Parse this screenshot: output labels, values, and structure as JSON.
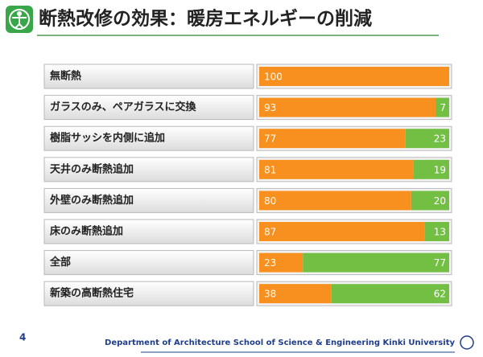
{
  "chart_data": {
    "type": "stacked-bar-horizontal",
    "title": "断熱改修の効果：暖房エネルギーの削減",
    "categories": [
      "無断熱",
      "ガラスのみ、ペアガラスに交換",
      "樹脂サッシを内側に追加",
      "天井のみ断熱追加",
      "外壁のみ断熱追加",
      "床のみ断熱追加",
      "全部",
      "新築の高断熱住宅"
    ],
    "series": [
      {
        "color": "#f7901e",
        "values": [
          100,
          93,
          77,
          81,
          80,
          87,
          23,
          38
        ]
      },
      {
        "color": "#72bf44",
        "values": [
          null,
          7,
          23,
          19,
          20,
          13,
          77,
          62
        ]
      }
    ],
    "xlim": [
      0,
      100
    ]
  },
  "page": {
    "number": 4,
    "footer": "Department of Architecture  School of Science & Engineering  Kinki University"
  }
}
